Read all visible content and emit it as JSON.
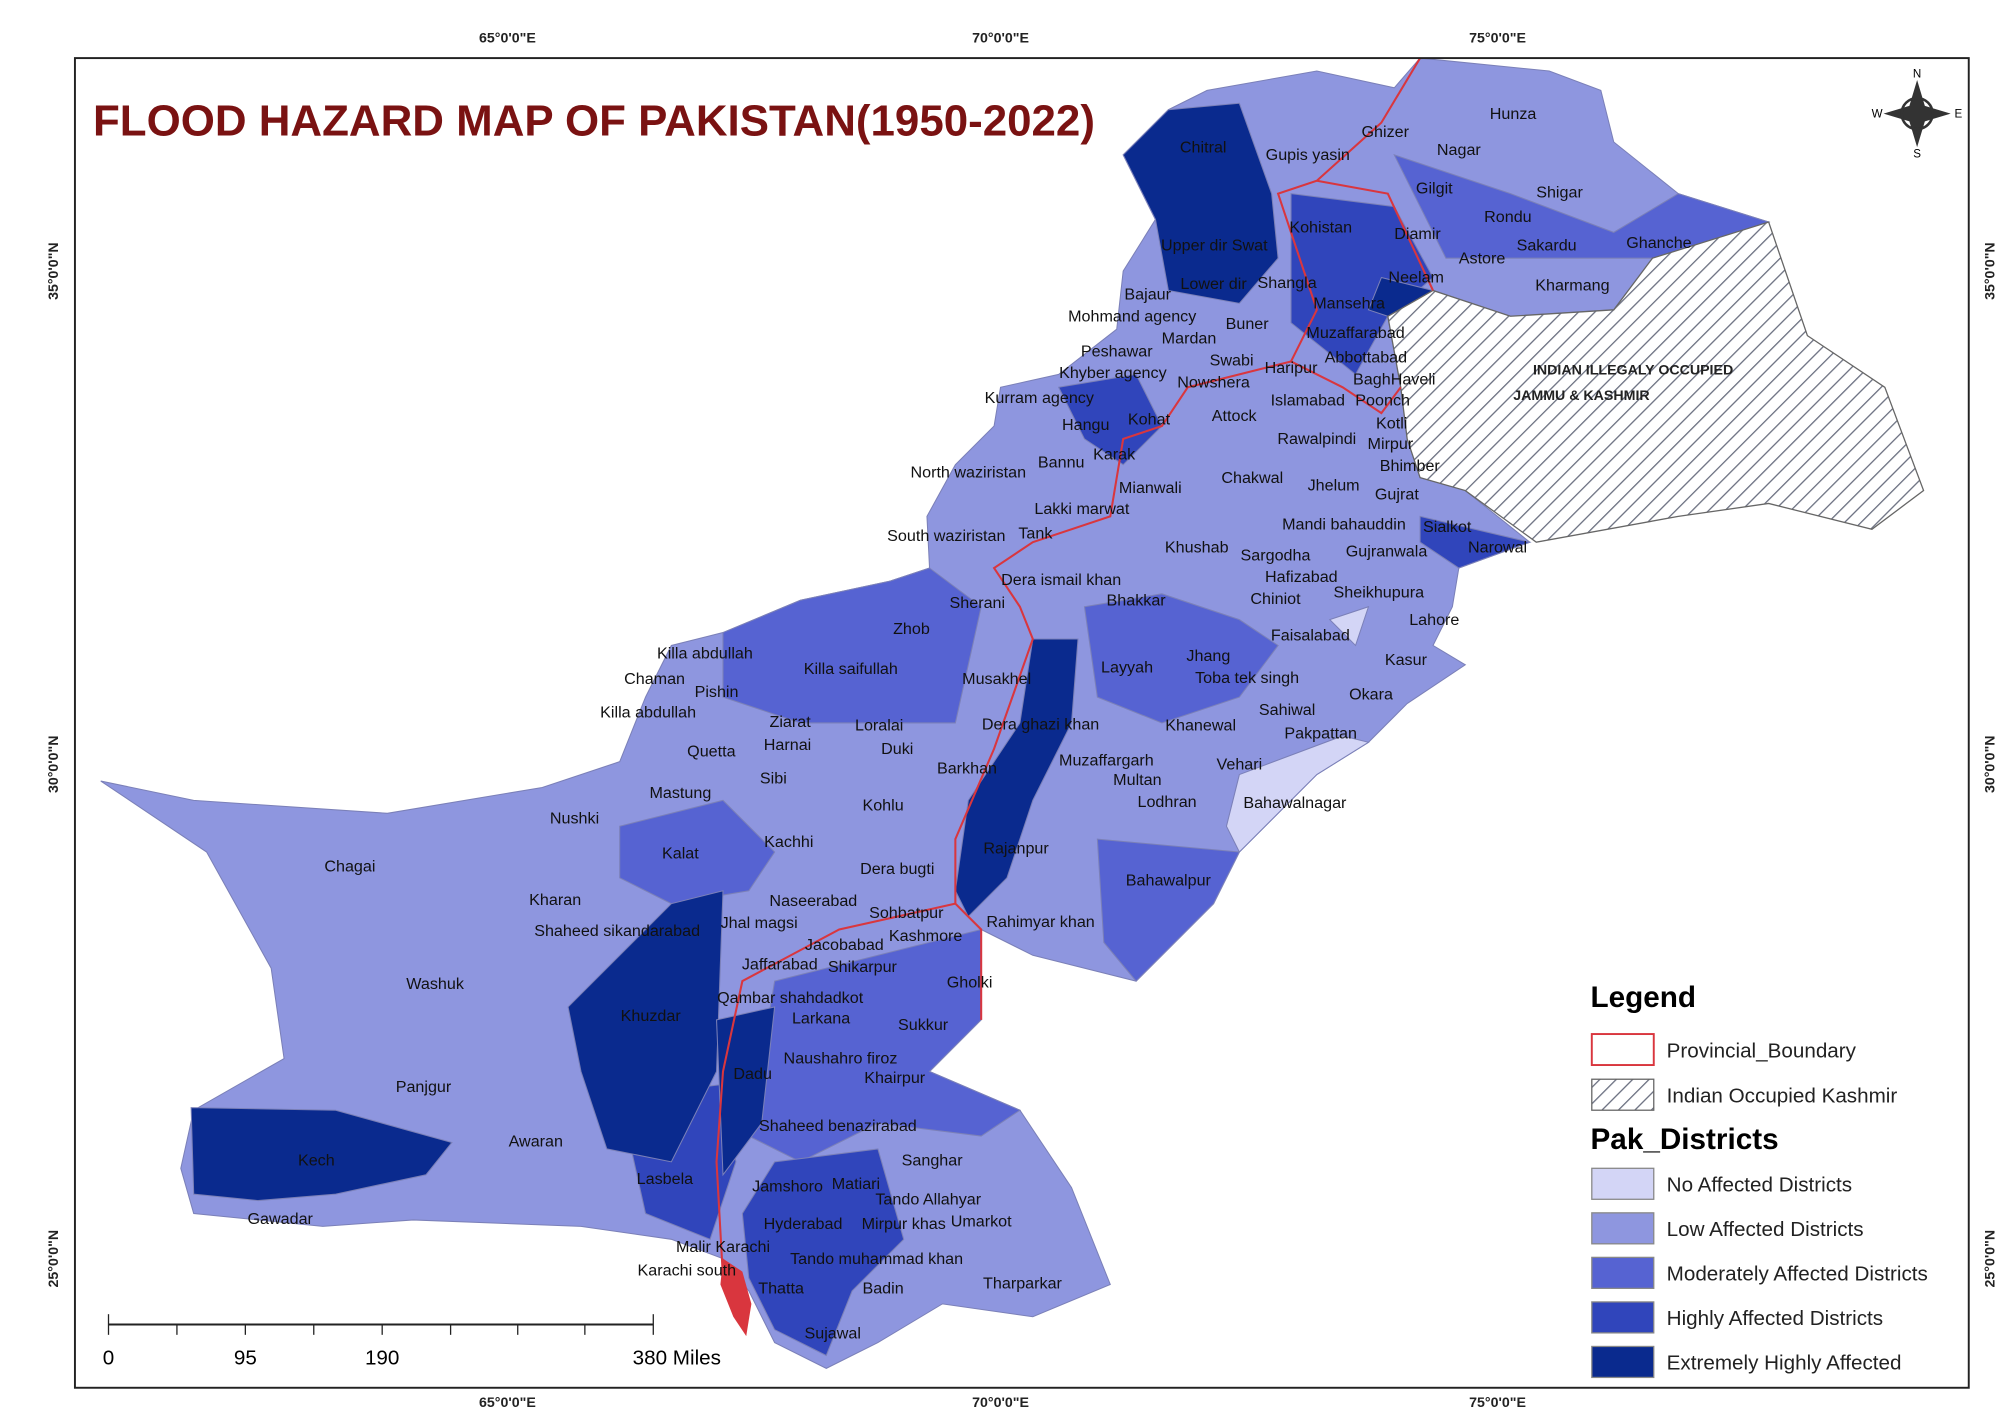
{
  "title": "FLOOD HAZARD MAP OF PAKISTAN(1950-2022)",
  "graticule": {
    "top": [
      "65°0'0\"E",
      "70°0'0\"E",
      "75°0'0\"E"
    ],
    "bottom": [
      "65°0'0\"E",
      "70°0'0\"E",
      "75°0'0\"E"
    ],
    "left": [
      "35°0'0\"N",
      "30°0'0\"N",
      "25°0'0\"N"
    ],
    "right": [
      "35°0'0\"N",
      "30°0'0\"N",
      "25°0'0\"N"
    ]
  },
  "compass": {
    "n": "N",
    "s": "S",
    "e": "E",
    "w": "W"
  },
  "occupied_label": [
    "INDIAN ILLEGALY OCCUPIED",
    "JAMMU & KASHMIR"
  ],
  "districts": [
    "Hunza",
    "Ghizer",
    "Nagar",
    "Chitral",
    "Gupis yasin",
    "Gilgit",
    "Shigar",
    "Rondu",
    "Kohistan",
    "Diamir",
    "Ghanche",
    "Upper dir",
    "Swat",
    "Sakardu",
    "Astore",
    "Lower dir",
    "Shangla",
    "Kharmang",
    "Neelam",
    "Bajaur",
    "Mansehra",
    "Mohmand agency",
    "Buner",
    "Mardan",
    "Muzaffarabad",
    "Peshawar",
    "Swabi",
    "Abbottabad",
    "Khyber agency",
    "Haripur",
    "Nowshera",
    "BaghHaveli",
    "Kurram agency",
    "Islamabad",
    "Poonch",
    "Attock",
    "Hangu",
    "Kohat",
    "Kotli",
    "Rawalpindi",
    "Mirpur",
    "Karak",
    "Bannu",
    "Bhimber",
    "North waziristan",
    "Chakwal",
    "Jhelum",
    "Mianwali",
    "Gujrat",
    "Lakki marwat",
    "Mandi bahauddin",
    "Sialkot",
    "South waziristan",
    "Tank",
    "Khushab",
    "Sargodha",
    "Gujranwala",
    "Narowal",
    "Hafizabad",
    "Dera ismail khan",
    "Sheikhupura",
    "Sherani",
    "Bhakkar",
    "Chiniot",
    "Lahore",
    "Zhob",
    "Faisalabad",
    "Killa abdullah",
    "Kasur",
    "Killa saifullah",
    "Jhang",
    "Layyah",
    "Musakhel",
    "Toba tek singh",
    "Chaman",
    "Pishin",
    "Okara",
    "Killa abdullah",
    "Sahiwal",
    "Ziarat",
    "Loralai",
    "Dera ghazi khan",
    "Khanewal",
    "Pakpattan",
    "Quetta",
    "Harnai",
    "Duki",
    "Vehari",
    "Muzaffargarh",
    "Barkhan",
    "Mastung",
    "Sibi",
    "Multan",
    "Nushki",
    "Kohlu",
    "Lodhran",
    "Bahawalnagar",
    "Kachhi",
    "Kalat",
    "Rajanpur",
    "Chagai",
    "Dera bugti",
    "Bahawalpur",
    "Kharan",
    "Naseerabad",
    "Sohbatpur",
    "Shaheed sikandarabad",
    "Jhal magsi",
    "Rahimyar khan",
    "Kashmore",
    "Jacobabad",
    "Jaffarabad",
    "Shikarpur",
    "Washuk",
    "Gholki",
    "Qambar shahdadkot",
    "Khuzdar",
    "Larkana",
    "Sukkur",
    "Naushahro firoz",
    "Dadu",
    "Khairpur",
    "Panjgur",
    "Shaheed benazirabad",
    "Awaran",
    "Kech",
    "Sanghar",
    "Lasbela",
    "Jamshoro",
    "Matiari",
    "Tando Allahyar",
    "Gawadar",
    "Hyderabad",
    "Mirpur khas",
    "Umarkot",
    "Malir Karachi",
    "Tando muhammad khan",
    "Karachi south",
    "Thatta",
    "Badin",
    "Tharparkar",
    "Sujawal"
  ],
  "scale_bar": [
    "0",
    "95",
    "190",
    "380 Miles"
  ],
  "legend": {
    "title": "Legend",
    "boundary": "Provincial_Boundary",
    "occupied": "Indian Occupied Kashmir",
    "classes_title": "Pak_Districts",
    "boundary_color": "#d9363e",
    "classes": [
      {
        "label": "No Affected Districts",
        "color": "#d3d5f6"
      },
      {
        "label": "Low Affected Districts",
        "color": "#8e96df"
      },
      {
        "label": "Moderately Affected Districts",
        "color": "#5663d2"
      },
      {
        "label": "Highly Affected Districts",
        "color": "#3045bb"
      },
      {
        "label": "Extremely Highly Affected",
        "color": "#0a2a8e"
      }
    ]
  }
}
